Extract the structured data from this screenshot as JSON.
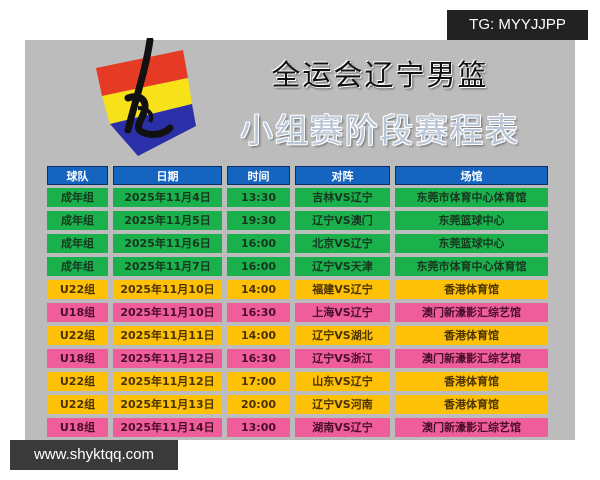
{
  "watermark_top": "TG: MYYJJPP",
  "watermark_bottom": "www.shyktqq.com",
  "title_line1": "全运会辽宁男篮",
  "title_line2": "小组赛阶段赛程表",
  "logo_icon": "basketball-calligraphy-logo",
  "colors": {
    "header": "#1565c0",
    "senior": "#1ab14c",
    "u22": "#ffc107",
    "u18": "#ef5d9a"
  },
  "table": {
    "headers": [
      "球队",
      "日期",
      "时间",
      "对阵",
      "场馆"
    ],
    "rows": [
      {
        "team": "成年组",
        "date": "2025年11月4日",
        "time": "13:30",
        "match": "吉林VS辽宁",
        "venue": "东莞市体育中心体育馆",
        "c": "g"
      },
      {
        "team": "成年组",
        "date": "2025年11月5日",
        "time": "19:30",
        "match": "辽宁VS澳门",
        "venue": "东莞篮球中心",
        "c": "g"
      },
      {
        "team": "成年组",
        "date": "2025年11月6日",
        "time": "16:00",
        "match": "北京VS辽宁",
        "venue": "东莞篮球中心",
        "c": "g"
      },
      {
        "team": "成年组",
        "date": "2025年11月7日",
        "time": "16:00",
        "match": "辽宁VS天津",
        "venue": "东莞市体育中心体育馆",
        "c": "g"
      },
      {
        "team": "U22组",
        "date": "2025年11月10日",
        "time": "14:00",
        "match": "福建VS辽宁",
        "venue": "香港体育馆",
        "c": "y"
      },
      {
        "team": "U18组",
        "date": "2025年11月10日",
        "time": "16:30",
        "match": "上海VS辽宁",
        "venue": "澳门新濠影汇综艺馆",
        "c": "p"
      },
      {
        "team": "U22组",
        "date": "2025年11月11日",
        "time": "14:00",
        "match": "辽宁VS湖北",
        "venue": "香港体育馆",
        "c": "y"
      },
      {
        "team": "U18组",
        "date": "2025年11月12日",
        "time": "16:30",
        "match": "辽宁VS浙江",
        "venue": "澳门新濠影汇综艺馆",
        "c": "p"
      },
      {
        "team": "U22组",
        "date": "2025年11月12日",
        "time": "17:00",
        "match": "山东VS辽宁",
        "venue": "香港体育馆",
        "c": "y"
      },
      {
        "team": "U22组",
        "date": "2025年11月13日",
        "time": "20:00",
        "match": "辽宁VS河南",
        "venue": "香港体育馆",
        "c": "y"
      },
      {
        "team": "U18组",
        "date": "2025年11月14日",
        "time": "13:00",
        "match": "湖南VS辽宁",
        "venue": "澳门新濠影汇综艺馆",
        "c": "p"
      }
    ]
  }
}
